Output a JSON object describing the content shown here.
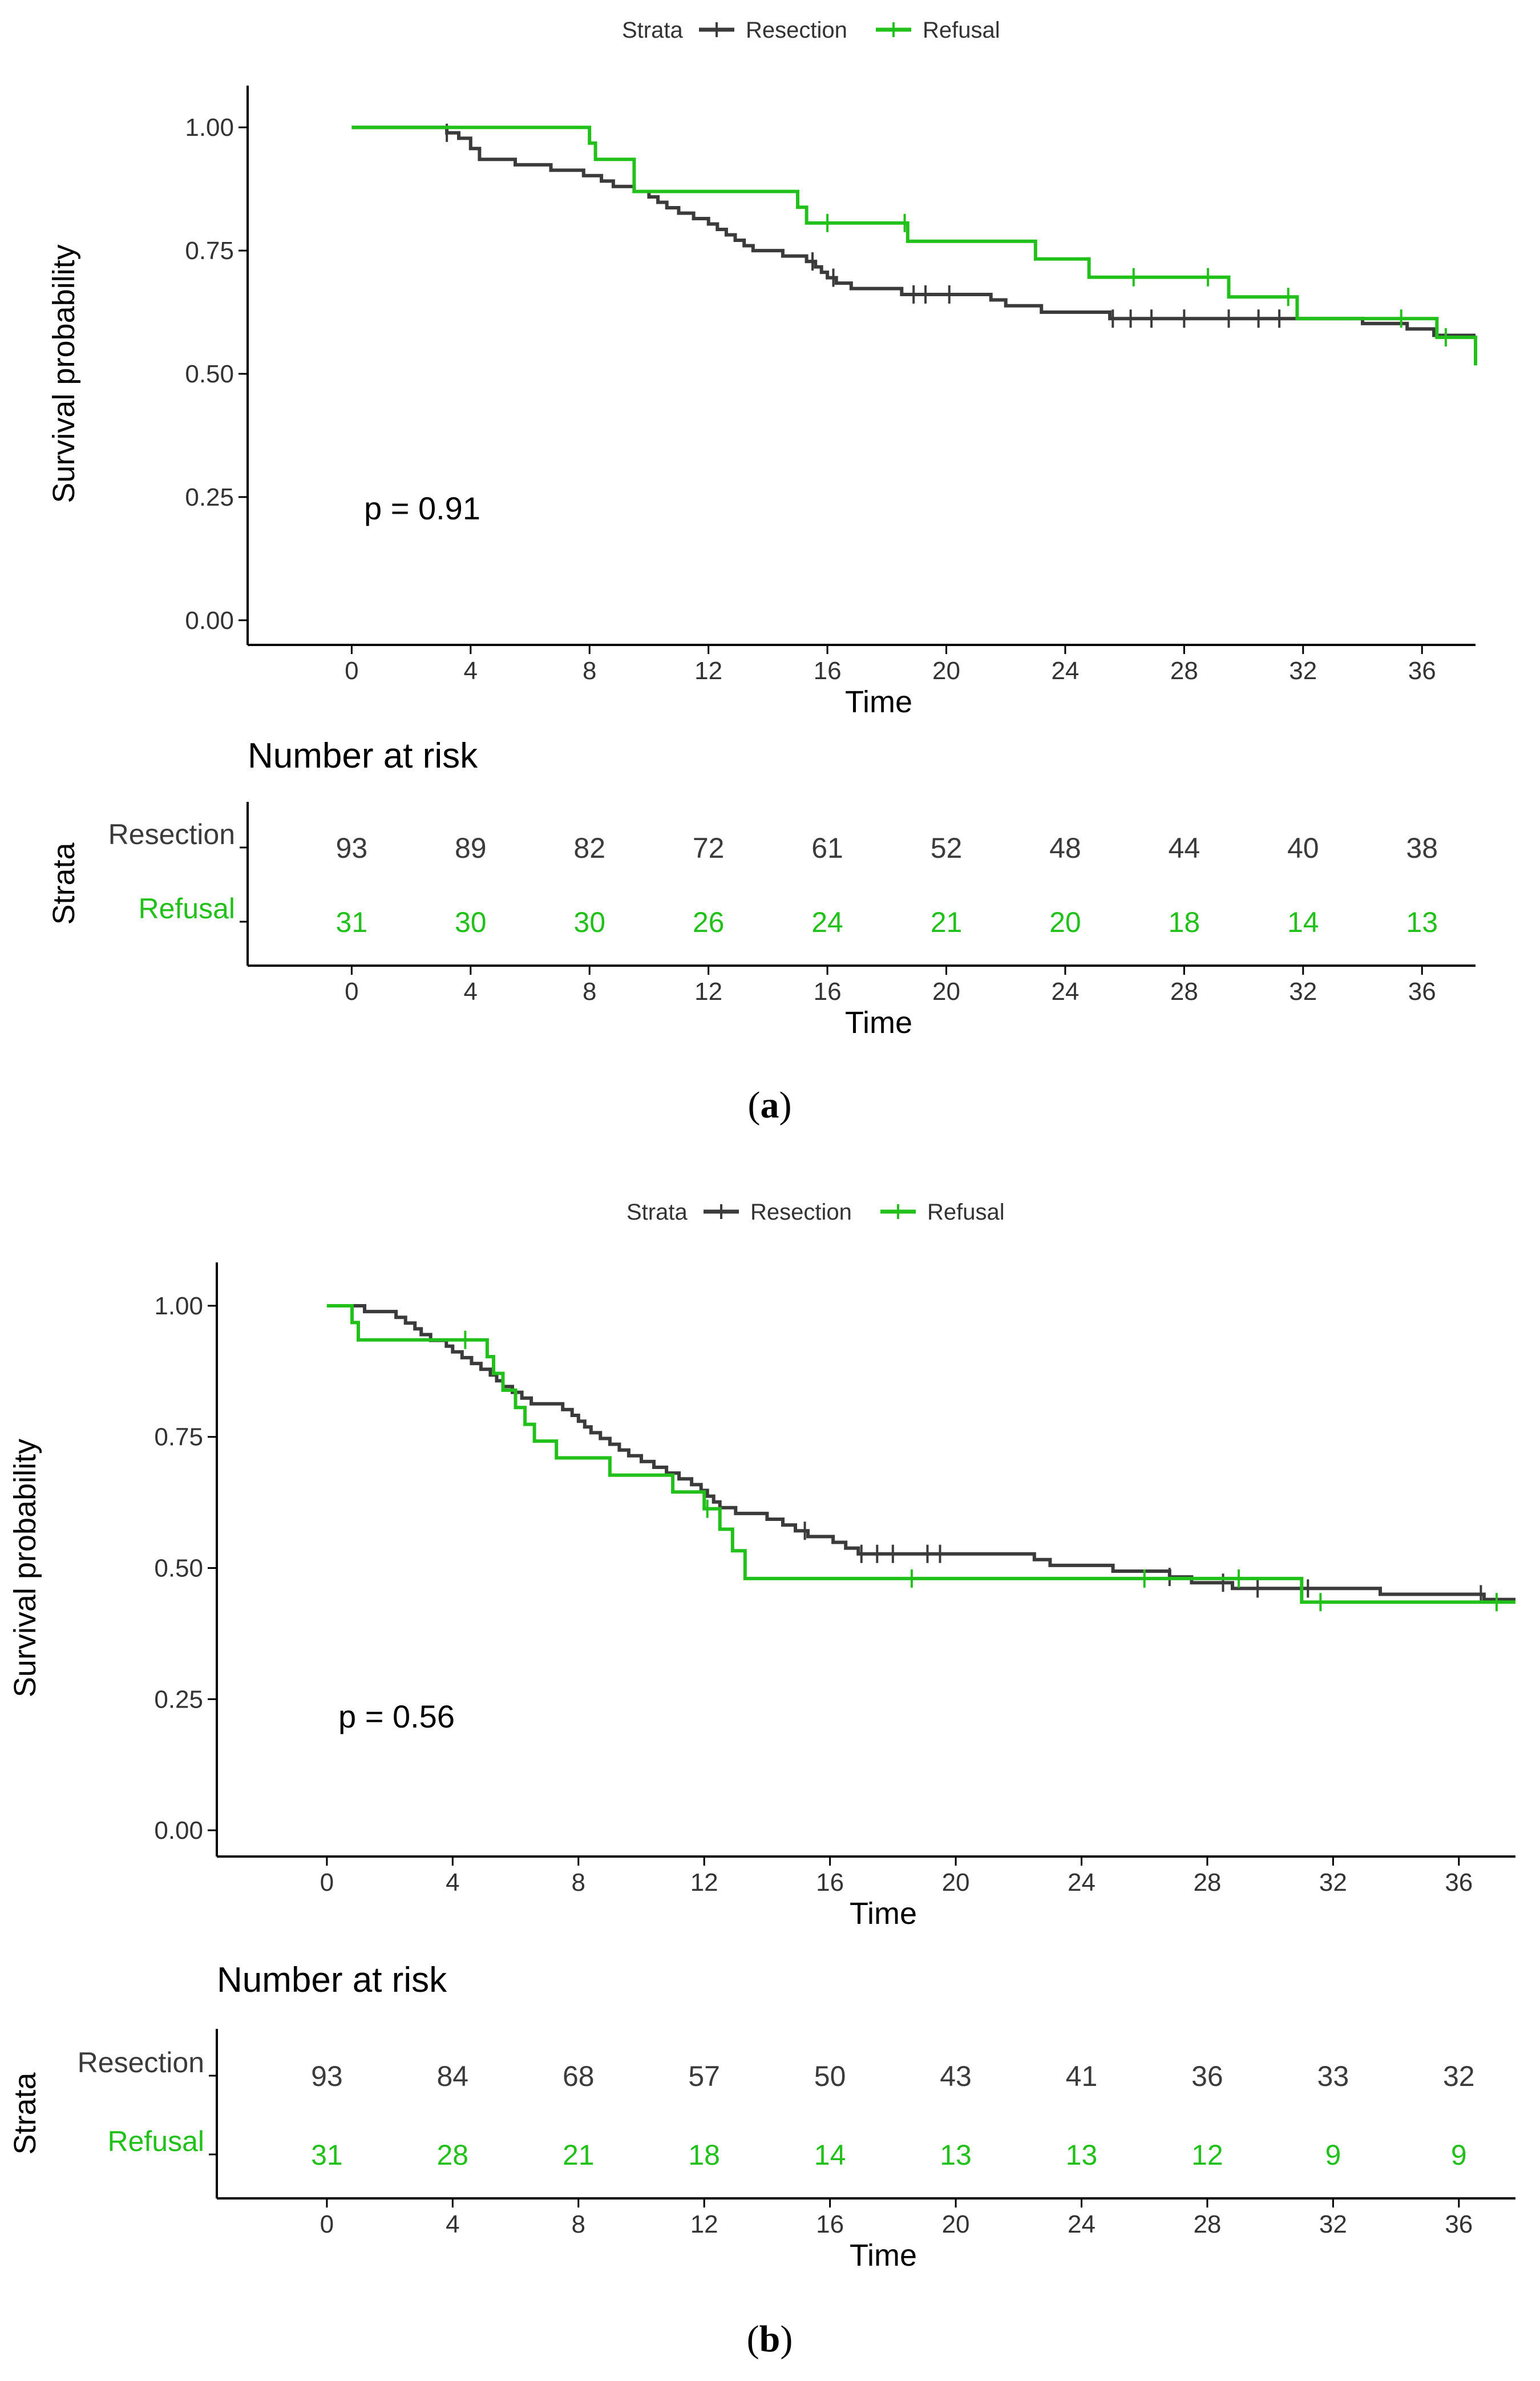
{
  "colors": {
    "resection": "#3b3b3b",
    "refusal": "#22c01a",
    "axis": "#000000"
  },
  "chart_data": [
    {
      "type": "line",
      "panel_label": "a",
      "legend": {
        "title": "Strata",
        "entries": [
          "Resection",
          "Refusal"
        ],
        "position": "top"
      },
      "xlabel": "Time",
      "ylabel": "Survival probability",
      "xlim": [
        -3.5,
        37.8
      ],
      "ylim": [
        -0.05,
        1.05
      ],
      "xticks": [
        "0",
        "4",
        "8",
        "12",
        "16",
        "20",
        "24",
        "28",
        "32",
        "36"
      ],
      "yticks": [
        "0.00",
        "0.25",
        "0.50",
        "0.75",
        "1.00"
      ],
      "pvalue": "p = 0.91",
      "series": [
        {
          "name": "Resection",
          "steps": [
            [
              0,
              1.0
            ],
            [
              3.2,
              0.989
            ],
            [
              3.6,
              0.978
            ],
            [
              4.0,
              0.957
            ],
            [
              4.3,
              0.935
            ],
            [
              5.5,
              0.924
            ],
            [
              6.7,
              0.913
            ],
            [
              7.8,
              0.902
            ],
            [
              8.4,
              0.891
            ],
            [
              8.8,
              0.88
            ],
            [
              9.5,
              0.87
            ],
            [
              10.0,
              0.859
            ],
            [
              10.3,
              0.848
            ],
            [
              10.6,
              0.837
            ],
            [
              11.0,
              0.826
            ],
            [
              11.5,
              0.815
            ],
            [
              12.0,
              0.804
            ],
            [
              12.3,
              0.793
            ],
            [
              12.6,
              0.782
            ],
            [
              12.9,
              0.771
            ],
            [
              13.2,
              0.76
            ],
            [
              13.5,
              0.75
            ],
            [
              14.5,
              0.739
            ],
            [
              15.3,
              0.728
            ],
            [
              15.6,
              0.717
            ],
            [
              15.8,
              0.706
            ],
            [
              16.0,
              0.695
            ],
            [
              16.3,
              0.684
            ],
            [
              16.8,
              0.673
            ],
            [
              18.5,
              0.661
            ],
            [
              21.5,
              0.65
            ],
            [
              22.0,
              0.638
            ],
            [
              23.2,
              0.625
            ],
            [
              25.5,
              0.612
            ],
            [
              33.0,
              0.612
            ],
            [
              34.0,
              0.602
            ],
            [
              35.5,
              0.591
            ],
            [
              36.4,
              0.578
            ],
            [
              37.8,
              0.578
            ]
          ],
          "censor": [
            3.2,
            15.5,
            16.2,
            18.9,
            19.3,
            20.1,
            25.6,
            26.2,
            26.9,
            28.0,
            29.5,
            30.5,
            31.2
          ]
        },
        {
          "name": "Refusal",
          "steps": [
            [
              0,
              1.0
            ],
            [
              8.0,
              0.968
            ],
            [
              8.2,
              0.935
            ],
            [
              9.5,
              0.87
            ],
            [
              15.0,
              0.838
            ],
            [
              15.3,
              0.806
            ],
            [
              18.7,
              0.769
            ],
            [
              23.0,
              0.733
            ],
            [
              24.8,
              0.696
            ],
            [
              29.5,
              0.656
            ],
            [
              31.8,
              0.612
            ],
            [
              36.5,
              0.574
            ],
            [
              37.8,
              0.517
            ]
          ],
          "censor": [
            16.0,
            18.6,
            26.3,
            28.8,
            31.5,
            35.3,
            36.8
          ]
        }
      ],
      "risk_table": {
        "title": "Number at risk",
        "ylabel": "Strata",
        "xlabel": "Time",
        "times": [
          "0",
          "4",
          "8",
          "12",
          "16",
          "20",
          "24",
          "28",
          "32",
          "36"
        ],
        "rows": [
          {
            "name": "Resection",
            "values": [
              "93",
              "89",
              "82",
              "72",
              "61",
              "52",
              "48",
              "44",
              "40",
              "38"
            ]
          },
          {
            "name": "Refusal",
            "values": [
              "31",
              "30",
              "30",
              "26",
              "24",
              "21",
              "20",
              "18",
              "14",
              "13"
            ]
          }
        ]
      }
    },
    {
      "type": "line",
      "panel_label": "b",
      "legend": {
        "title": "Strata",
        "entries": [
          "Resection",
          "Refusal"
        ],
        "position": "top"
      },
      "xlabel": "Time",
      "ylabel": "Survival probability",
      "xlim": [
        -3.5,
        37.8
      ],
      "ylim": [
        -0.05,
        1.05
      ],
      "xticks": [
        "0",
        "4",
        "8",
        "12",
        "16",
        "20",
        "24",
        "28",
        "32",
        "36"
      ],
      "yticks": [
        "0.00",
        "0.25",
        "0.50",
        "0.75",
        "1.00"
      ],
      "pvalue": "p = 0.56",
      "series": [
        {
          "name": "Resection",
          "steps": [
            [
              0,
              1.0
            ],
            [
              1.2,
              0.989
            ],
            [
              2.2,
              0.978
            ],
            [
              2.5,
              0.967
            ],
            [
              2.8,
              0.956
            ],
            [
              3.0,
              0.945
            ],
            [
              3.3,
              0.934
            ],
            [
              3.8,
              0.923
            ],
            [
              4.0,
              0.912
            ],
            [
              4.3,
              0.901
            ],
            [
              4.6,
              0.89
            ],
            [
              4.9,
              0.879
            ],
            [
              5.2,
              0.868
            ],
            [
              5.4,
              0.857
            ],
            [
              5.6,
              0.846
            ],
            [
              5.9,
              0.835
            ],
            [
              6.2,
              0.824
            ],
            [
              6.5,
              0.813
            ],
            [
              7.5,
              0.802
            ],
            [
              7.8,
              0.791
            ],
            [
              8.0,
              0.78
            ],
            [
              8.2,
              0.769
            ],
            [
              8.4,
              0.758
            ],
            [
              8.7,
              0.747
            ],
            [
              9.0,
              0.736
            ],
            [
              9.3,
              0.725
            ],
            [
              9.6,
              0.714
            ],
            [
              10.0,
              0.703
            ],
            [
              10.4,
              0.692
            ],
            [
              10.8,
              0.681
            ],
            [
              11.2,
              0.67
            ],
            [
              11.6,
              0.659
            ],
            [
              11.9,
              0.648
            ],
            [
              12.1,
              0.637
            ],
            [
              12.3,
              0.626
            ],
            [
              12.5,
              0.615
            ],
            [
              13.0,
              0.604
            ],
            [
              14.0,
              0.593
            ],
            [
              14.5,
              0.582
            ],
            [
              14.9,
              0.571
            ],
            [
              15.3,
              0.56
            ],
            [
              16.1,
              0.549
            ],
            [
              16.5,
              0.538
            ],
            [
              16.9,
              0.527
            ],
            [
              22.5,
              0.516
            ],
            [
              23.0,
              0.505
            ],
            [
              25.0,
              0.494
            ],
            [
              26.8,
              0.483
            ],
            [
              27.5,
              0.472
            ],
            [
              28.8,
              0.461
            ],
            [
              33.5,
              0.45
            ],
            [
              36.8,
              0.44
            ],
            [
              37.8,
              0.44
            ]
          ],
          "censor": [
            15.2,
            17.0,
            17.5,
            18.0,
            19.1,
            19.5,
            26.8,
            28.5,
            29.6,
            31.2,
            36.7
          ]
        },
        {
          "name": "Refusal",
          "steps": [
            [
              0,
              1.0
            ],
            [
              0.8,
              0.968
            ],
            [
              1.0,
              0.935
            ],
            [
              5.1,
              0.903
            ],
            [
              5.3,
              0.871
            ],
            [
              5.6,
              0.839
            ],
            [
              6.0,
              0.806
            ],
            [
              6.3,
              0.774
            ],
            [
              6.6,
              0.742
            ],
            [
              7.3,
              0.71
            ],
            [
              9.0,
              0.677
            ],
            [
              11.0,
              0.645
            ],
            [
              12.0,
              0.613
            ],
            [
              12.5,
              0.574
            ],
            [
              12.9,
              0.533
            ],
            [
              13.3,
              0.48
            ],
            [
              31.0,
              0.435
            ],
            [
              37.8,
              0.435
            ]
          ],
          "censor": [
            4.4,
            12.1,
            18.6,
            26.0,
            29.0,
            31.6,
            37.2
          ]
        }
      ],
      "risk_table": {
        "title": "Number at risk",
        "ylabel": "Strata",
        "xlabel": "Time",
        "times": [
          "0",
          "4",
          "8",
          "12",
          "16",
          "20",
          "24",
          "28",
          "32",
          "36"
        ],
        "rows": [
          {
            "name": "Resection",
            "values": [
              "93",
              "84",
              "68",
              "57",
              "50",
              "43",
              "41",
              "36",
              "33",
              "32"
            ]
          },
          {
            "name": "Refusal",
            "values": [
              "31",
              "28",
              "21",
              "18",
              "14",
              "13",
              "13",
              "12",
              "9",
              "9"
            ]
          }
        ]
      }
    }
  ]
}
